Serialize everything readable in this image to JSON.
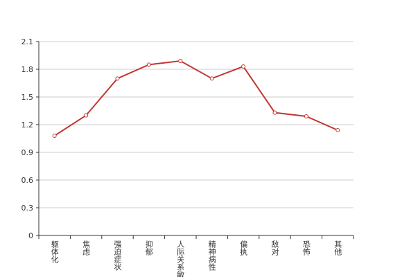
{
  "chart_data": {
    "type": "line",
    "categories": [
      "躯体化",
      "焦虑",
      "强迫症状",
      "抑郁",
      "人际关系敏感",
      "精神病性",
      "偏执",
      "敌对",
      "恐怖",
      "其他"
    ],
    "series": [
      {
        "name": null,
        "color": "#c23531",
        "values": [
          1.08,
          1.3,
          1.7,
          1.85,
          1.89,
          1.7,
          1.83,
          1.33,
          1.29,
          1.14
        ]
      }
    ],
    "ylim": [
      0,
      2.1
    ],
    "yticks": [
      0,
      0.3,
      0.6,
      0.9,
      1.2,
      1.5,
      1.8,
      2.1
    ],
    "grid": true
  }
}
